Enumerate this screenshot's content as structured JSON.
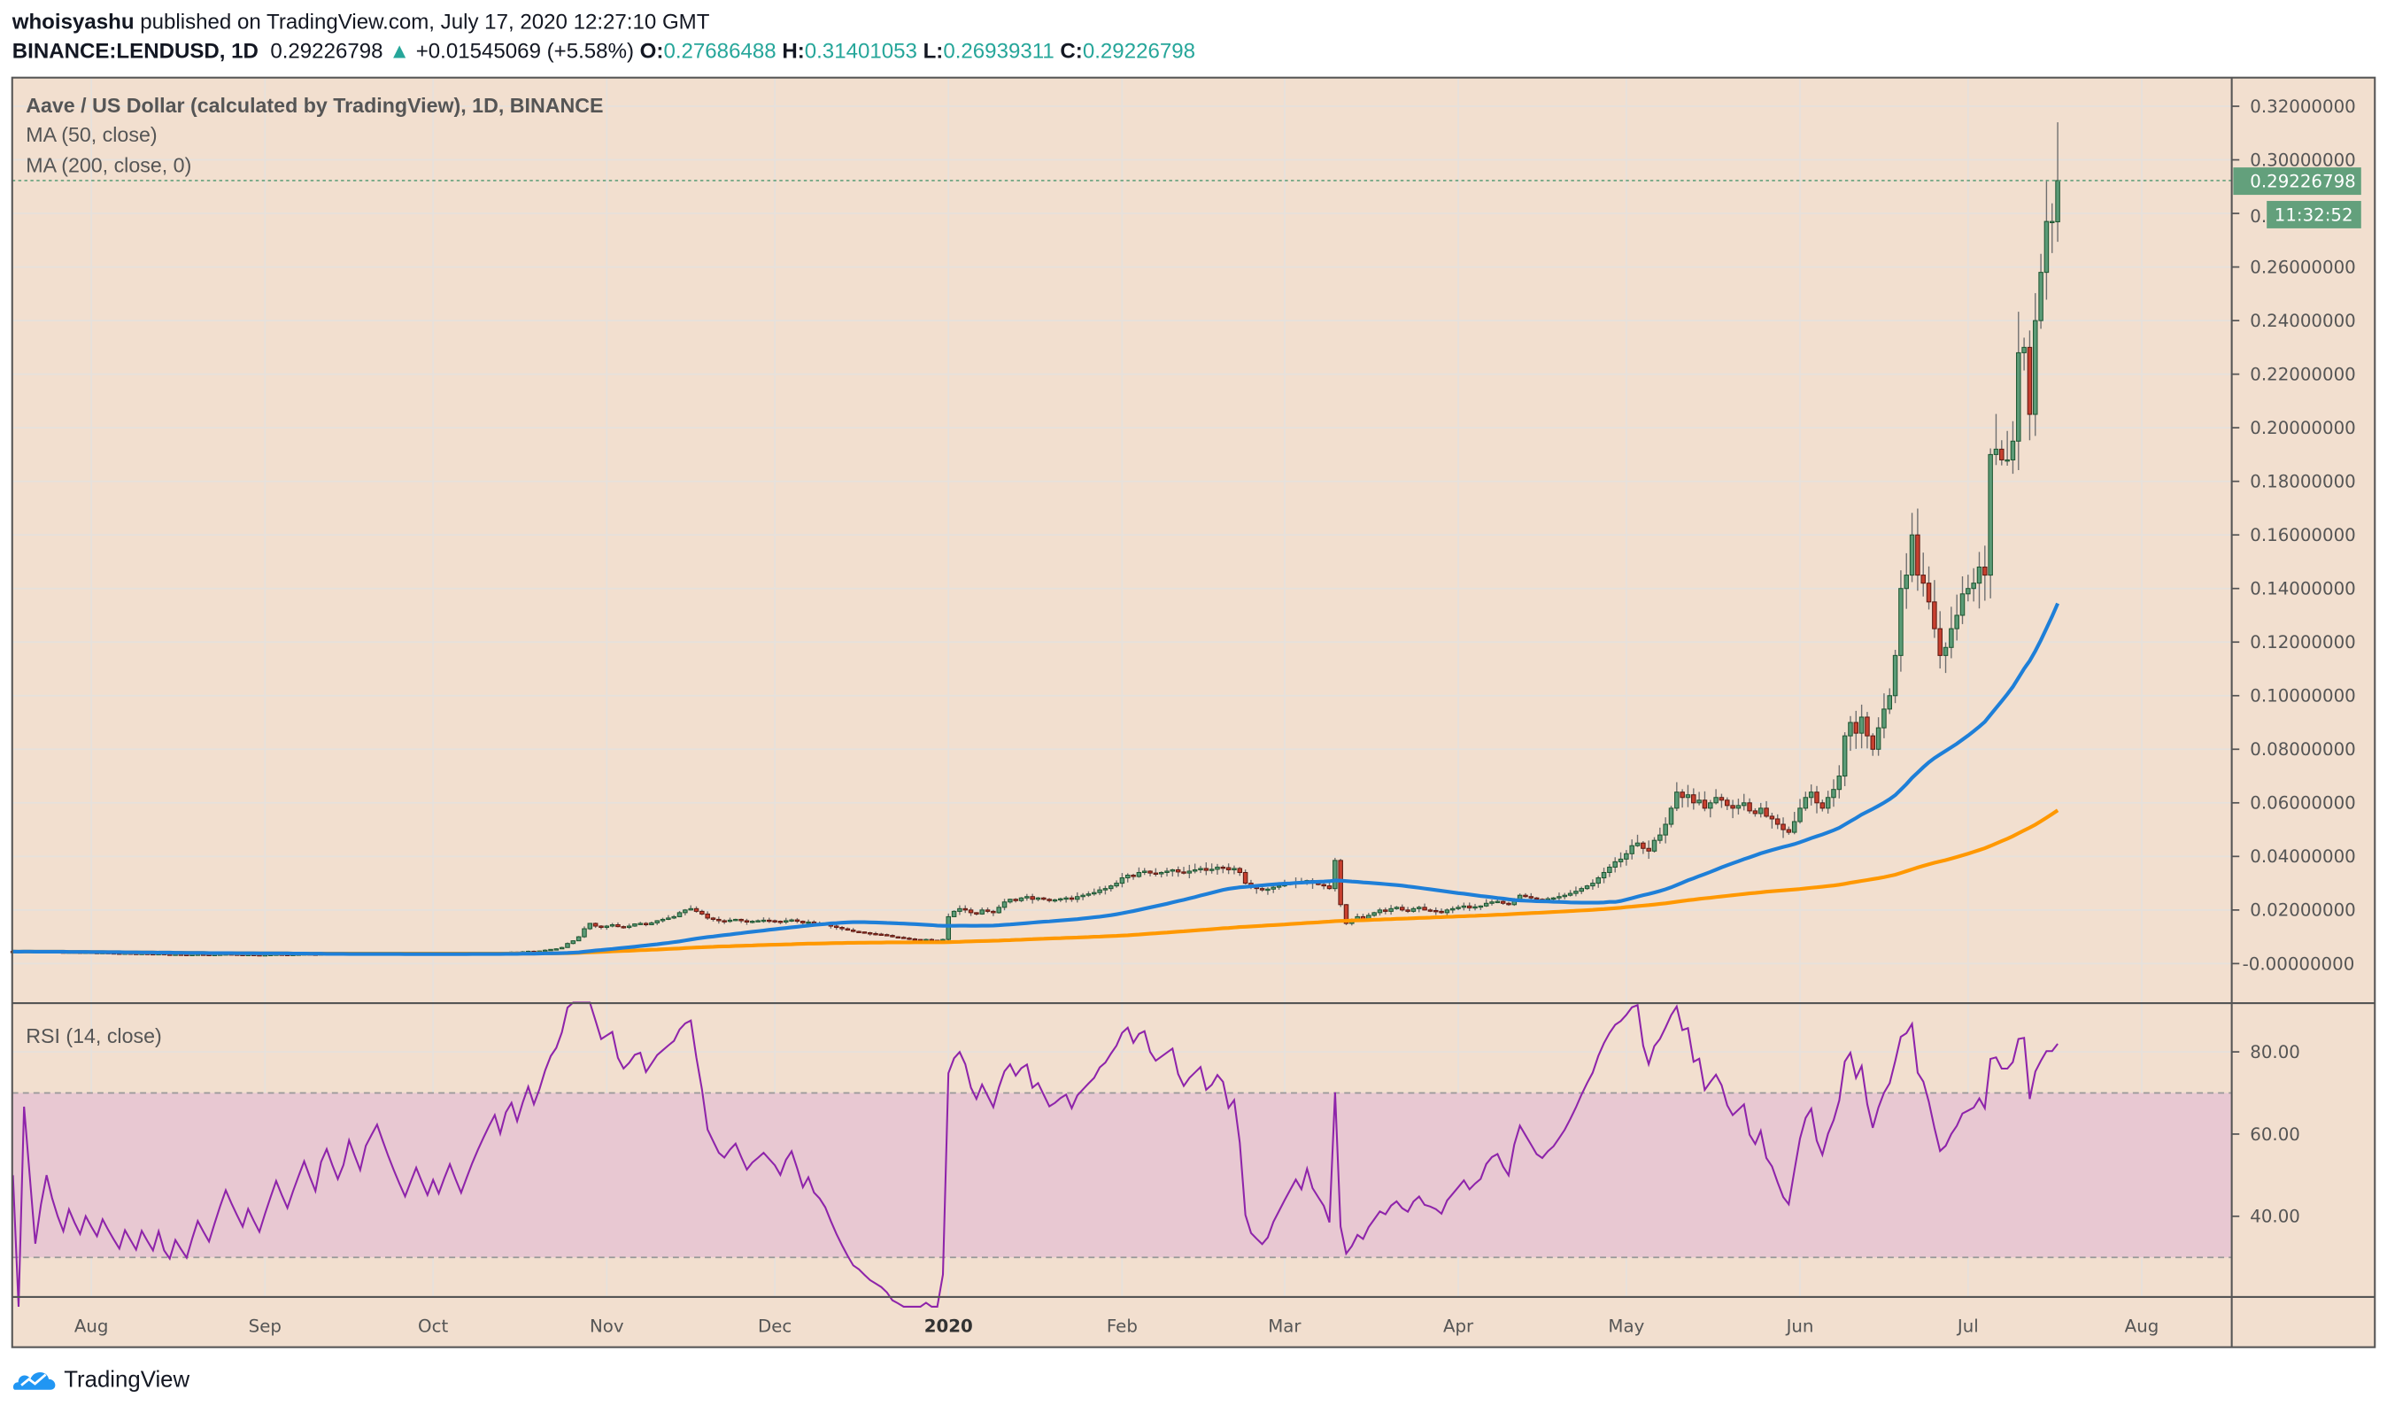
{
  "header": {
    "author": "whoisyashu",
    "published": "published on TradingView.com, July 17, 2020 12:27:10 GMT",
    "symbol": "BINANCE:LENDUSD, 1D",
    "last": "0.29226798",
    "change": "+0.01545069 (+5.58%)",
    "o_label": "O:",
    "o": "0.27686488",
    "h_label": "H:",
    "h": "0.31401053",
    "l_label": "L:",
    "l": "0.26939311",
    "c_label": "C:",
    "c": "0.29226798"
  },
  "legend": {
    "title": "Aave / US Dollar (calculated by TradingView), 1D, BINANCE",
    "ma50": "MA (50, close)",
    "ma200": "MA (200, close, 0)",
    "rsi": "RSI (14, close)"
  },
  "price_tag": {
    "value": "0.29226798",
    "countdown": "11:32:52",
    "partial_tick": "0."
  },
  "footer": {
    "brand": "TradingView"
  },
  "colors": {
    "background": "#f2dfcf",
    "up": "#5b9b77",
    "up_border": "#1e5631",
    "down": "#c8402f",
    "down_border": "#5e1a12",
    "wick": "#6f6f6f",
    "ma50": "#1e7fd8",
    "ma200": "#ff9800",
    "rsi": "#8e24aa",
    "rsi_band": "#e8c8d2",
    "accent": "#26a69a",
    "tag": "#63a07c"
  },
  "chart_data": [
    {
      "type": "candlestick",
      "title": "Aave / US Dollar (calculated by TradingView), 1D, BINANCE",
      "last_candle": {
        "date": "2020-07-17",
        "open": 0.27686488,
        "high": 0.31401053,
        "low": 0.26939311,
        "close": 0.29226798
      },
      "y_ticks": [
        "0.32000000",
        "0.30000000",
        "0.28000000",
        "0.26000000",
        "0.24000000",
        "0.22000000",
        "0.20000000",
        "0.18000000",
        "0.16000000",
        "0.14000000",
        "0.12000000",
        "0.10000000",
        "0.08000000",
        "0.06000000",
        "0.04000000",
        "0.02000000",
        "-0.00000000"
      ],
      "ylim": [
        -0.007,
        0.327
      ],
      "x_ticks": [
        "Aug",
        "Sep",
        "Oct",
        "Nov",
        "Dec",
        "2020",
        "Feb",
        "Mar",
        "Apr",
        "May",
        "Jun",
        "Jul",
        "Aug"
      ],
      "grid": true,
      "daily_closes": {
        "2019-07": [
          0.0045,
          0.0044,
          0.0046,
          0.0045,
          0.0043,
          0.0044,
          0.0045,
          0.0044,
          0.0043,
          0.0042,
          0.0043,
          0.0042,
          0.0041,
          0.0042
        ],
        "2019-08": [
          0.0041,
          0.004,
          0.0041,
          0.004,
          0.0039,
          0.0038,
          0.0039,
          0.0038,
          0.0037,
          0.0038,
          0.0037,
          0.0036,
          0.0037,
          0.0035,
          0.0034,
          0.0035,
          0.0034,
          0.0033,
          0.0034,
          0.0035,
          0.0034,
          0.0033,
          0.0034,
          0.0035,
          0.0036,
          0.0035,
          0.0034,
          0.0033,
          0.0034,
          0.0033,
          0.0032
        ],
        "2019-09": [
          0.0033,
          0.0034,
          0.0035,
          0.0034,
          0.0033,
          0.0034,
          0.0035,
          0.0036,
          0.0035,
          0.0034,
          0.0036,
          0.0037,
          0.0036,
          0.0035,
          0.0036,
          0.0038,
          0.0037,
          0.0036,
          0.0038,
          0.0039,
          0.004,
          0.0039,
          0.0038,
          0.0037,
          0.0036,
          0.0035,
          0.0036,
          0.0037,
          0.0036,
          0.0035
        ],
        "2019-10": [
          0.0036,
          0.0035,
          0.0036,
          0.0037,
          0.0036,
          0.0035,
          0.0036,
          0.0037,
          0.0038,
          0.0039,
          0.004,
          0.0041,
          0.004,
          0.0042,
          0.0043,
          0.0042,
          0.0044,
          0.0046,
          0.0045,
          0.0047,
          0.005,
          0.0053,
          0.0055,
          0.006,
          0.0075,
          0.0085,
          0.01,
          0.013,
          0.015,
          0.014,
          0.0135
        ],
        "2019-11": [
          0.014,
          0.0145,
          0.0138,
          0.0135,
          0.014,
          0.0148,
          0.015,
          0.0145,
          0.0152,
          0.016,
          0.0165,
          0.017,
          0.0175,
          0.019,
          0.02,
          0.0205,
          0.0195,
          0.0185,
          0.017,
          0.0165,
          0.016,
          0.0158,
          0.0162,
          0.0165,
          0.016,
          0.0155,
          0.0158,
          0.016,
          0.0162,
          0.016
        ],
        "2019-12": [
          0.0158,
          0.0155,
          0.016,
          0.0163,
          0.0158,
          0.0152,
          0.0155,
          0.015,
          0.0148,
          0.0145,
          0.014,
          0.0135,
          0.013,
          0.0125,
          0.012,
          0.0118,
          0.0115,
          0.0112,
          0.011,
          0.0108,
          0.0105,
          0.01,
          0.0098,
          0.0095,
          0.0092,
          0.009,
          0.0088,
          0.009,
          0.0087,
          0.0085,
          0.009
        ],
        "2020-01": [
          0.0175,
          0.0195,
          0.0205,
          0.02,
          0.019,
          0.0185,
          0.02,
          0.0195,
          0.019,
          0.021,
          0.023,
          0.024,
          0.0235,
          0.0245,
          0.025,
          0.024,
          0.0245,
          0.024,
          0.0235,
          0.0238,
          0.0242,
          0.0245,
          0.024,
          0.025,
          0.0255,
          0.026,
          0.0265,
          0.0275,
          0.028,
          0.029,
          0.03
        ],
        "2020-02": [
          0.032,
          0.033,
          0.0325,
          0.034,
          0.0345,
          0.0338,
          0.0335,
          0.034,
          0.0345,
          0.035,
          0.0342,
          0.0338,
          0.0345,
          0.035,
          0.0355,
          0.0348,
          0.0352,
          0.036,
          0.0358,
          0.035,
          0.0355,
          0.034,
          0.03,
          0.0285,
          0.028,
          0.0275,
          0.0278,
          0.0285,
          0.029
        ],
        "2020-03": [
          0.0295,
          0.03,
          0.0305,
          0.03,
          0.031,
          0.03,
          0.0295,
          0.029,
          0.028,
          0.0385,
          0.022,
          0.015,
          0.016,
          0.0175,
          0.0165,
          0.018,
          0.019,
          0.02,
          0.0195,
          0.0205,
          0.021,
          0.02,
          0.0195,
          0.0205,
          0.021,
          0.02,
          0.0198,
          0.0195,
          0.019,
          0.02,
          0.0205
        ],
        "2020-04": [
          0.021,
          0.0215,
          0.0208,
          0.0212,
          0.0215,
          0.0225,
          0.023,
          0.0232,
          0.0225,
          0.022,
          0.024,
          0.0255,
          0.025,
          0.0245,
          0.024,
          0.0238,
          0.0242,
          0.0245,
          0.025,
          0.0255,
          0.0262,
          0.027,
          0.028,
          0.029,
          0.03,
          0.032,
          0.034,
          0.036,
          0.038,
          0.039
        ],
        "2020-05": [
          0.041,
          0.044,
          0.045,
          0.043,
          0.042,
          0.046,
          0.048,
          0.052,
          0.058,
          0.064,
          0.062,
          0.063,
          0.06,
          0.061,
          0.058,
          0.06,
          0.062,
          0.061,
          0.059,
          0.058,
          0.059,
          0.06,
          0.057,
          0.056,
          0.058,
          0.055,
          0.054,
          0.052,
          0.05,
          0.049,
          0.053
        ],
        "2020-06": [
          0.058,
          0.062,
          0.064,
          0.06,
          0.058,
          0.062,
          0.065,
          0.07,
          0.085,
          0.09,
          0.086,
          0.092,
          0.085,
          0.08,
          0.088,
          0.095,
          0.1,
          0.115,
          0.14,
          0.145,
          0.16,
          0.145,
          0.142,
          0.135,
          0.125,
          0.115,
          0.118,
          0.125,
          0.13,
          0.138
        ],
        "2020-07": [
          0.14,
          0.142,
          0.148,
          0.145,
          0.19,
          0.192,
          0.188,
          0.188,
          0.195,
          0.228,
          0.23,
          0.205,
          0.24,
          0.258,
          0.277,
          0.277,
          0.29226798
        ]
      },
      "series": [
        {
          "name": "MA (50, close)"
        },
        {
          "name": "MA (200, close, 0)"
        }
      ]
    },
    {
      "type": "line",
      "title": "RSI (14, close)",
      "y_ticks": [
        "80.00",
        "60.00",
        "40.00"
      ],
      "bands": [
        30,
        70
      ],
      "ylim": [
        18,
        92
      ]
    }
  ]
}
